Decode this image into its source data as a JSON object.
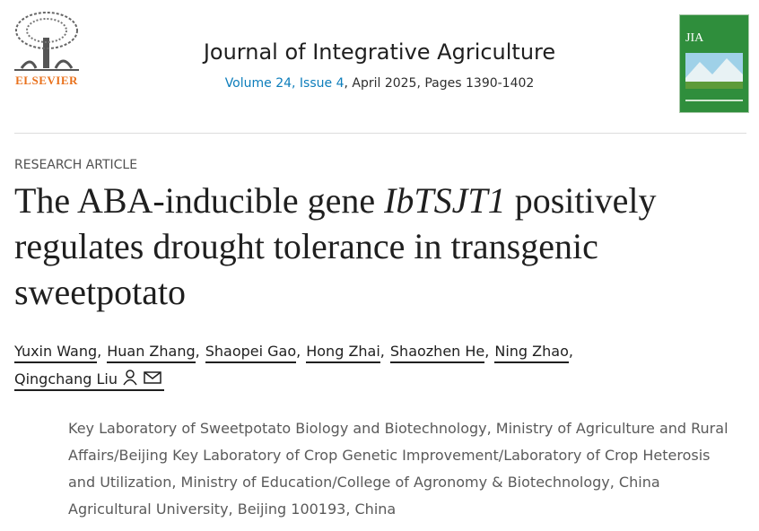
{
  "header": {
    "publisher": "ELSEVIER",
    "journal": "Journal of Integrative Agriculture",
    "volume_issue": "Volume 24, Issue 4",
    "date_pages": ", April 2025, Pages 1390-1402",
    "cover_label": "JIA"
  },
  "article": {
    "type": "RESEARCH ARTICLE",
    "title": {
      "before": "The ABA-inducible gene ",
      "gene": "IbTSJT1",
      "after": " positively regulates drought tolerance in transgenic sweetpotato"
    },
    "authors": [
      "Yuxin Wang",
      "Huan Zhang",
      "Shaopei Gao",
      "Hong Zhai",
      "Shaozhen He",
      "Ning Zhao",
      "Qingchang Liu"
    ],
    "author_separator": ",",
    "affiliation": "Key Laboratory of Sweetpotato Biology and Biotechnology, Ministry of Agriculture and Rural Affairs/Beijing Key Laboratory of Crop Genetic Improvement/Laboratory of Crop Heterosis and Utilization, Ministry of Education/College of Agronomy & Biotechnology, China Agricultural University, Beijing 100193, China"
  }
}
